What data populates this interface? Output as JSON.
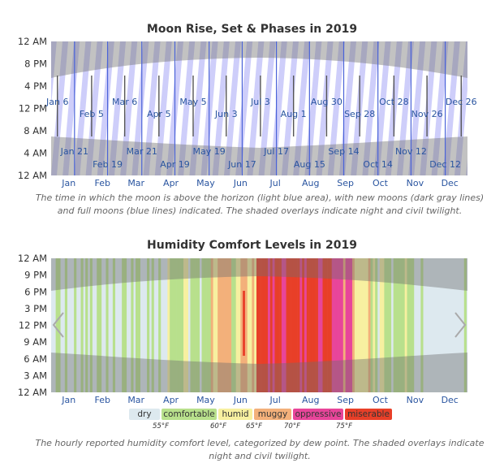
{
  "chart_data": [
    {
      "type": "area",
      "title": "Moon Rise, Set & Phases in 2019",
      "y_ticks": [
        "12 AM",
        "8 PM",
        "4 PM",
        "12 PM",
        "8 AM",
        "4 AM",
        "12 AM"
      ],
      "months": [
        "Jan",
        "Feb",
        "Mar",
        "Apr",
        "May",
        "Jun",
        "Jul",
        "Aug",
        "Sep",
        "Oct",
        "Nov",
        "Dec"
      ],
      "full_moons": [
        "Jan 21",
        "Feb 19",
        "Mar 21",
        "Apr 19",
        "May 19",
        "Jun 17",
        "Jul 17",
        "Aug 15",
        "Sep 14",
        "Oct 14",
        "Nov 12",
        "Dec 12"
      ],
      "new_moons": [
        "Jan 6",
        "Feb 5",
        "Mar 6",
        "Apr 5",
        "May 5",
        "Jun 3",
        "Jul 3",
        "Aug 1",
        "Aug 30",
        "Sep 28",
        "Oct 28",
        "Nov 26",
        "Dec 26"
      ],
      "caption": "The time in which the moon is above the horizon (light blue area), with new moons (dark gray lines) and full moons (blue lines) indicated. The shaded overlays indicate night and civil twilight."
    },
    {
      "type": "heatmap",
      "title": "Humidity Comfort Levels in 2019",
      "y_ticks": [
        "12 AM",
        "9 PM",
        "6 PM",
        "3 PM",
        "12 PM",
        "9 AM",
        "6 AM",
        "3 AM",
        "12 AM"
      ],
      "months": [
        "Jan",
        "Feb",
        "Mar",
        "Apr",
        "May",
        "Jun",
        "Jul",
        "Aug",
        "Sep",
        "Oct",
        "Nov",
        "Dec"
      ],
      "categories": [
        {
          "name": "dry",
          "color": "#dde9ef"
        },
        {
          "name": "comfortable",
          "color": "#b8e08c"
        },
        {
          "name": "humid",
          "color": "#f7f0a0"
        },
        {
          "name": "muggy",
          "color": "#f3b07a"
        },
        {
          "name": "oppressive",
          "color": "#e8459a"
        },
        {
          "name": "miserable",
          "color": "#e83f28"
        }
      ],
      "thresholds": [
        "55°F",
        "60°F",
        "65°F",
        "70°F",
        "75°F"
      ],
      "caption": "The hourly reported humidity comfort level, categorized by dew point. The shaded overlays indicate night and civil twilight."
    }
  ]
}
